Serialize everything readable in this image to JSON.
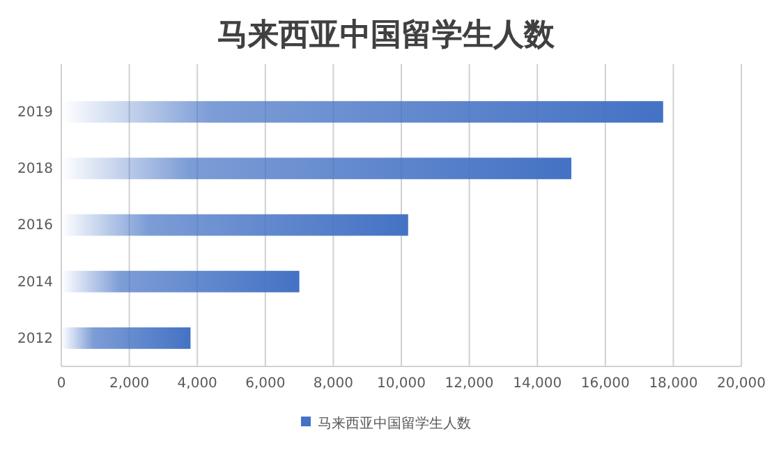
{
  "chart_data": {
    "type": "bar",
    "title": "马来西亚中国留学生人数",
    "orientation": "horizontal",
    "categories": [
      "2019",
      "2018",
      "2016",
      "2014",
      "2012"
    ],
    "series": [
      {
        "name": "马来西亚中国留学生人数",
        "color": "#4472c4",
        "values": [
          17700,
          15000,
          10200,
          7000,
          3800
        ]
      }
    ],
    "xlim": [
      0,
      20000
    ],
    "xticks": [
      {
        "value": 0,
        "label": "0"
      },
      {
        "value": 2000,
        "label": "2,000"
      },
      {
        "value": 4000,
        "label": "4,000"
      },
      {
        "value": 6000,
        "label": "6,000"
      },
      {
        "value": 8000,
        "label": "8,000"
      },
      {
        "value": 10000,
        "label": "10,000"
      },
      {
        "value": 12000,
        "label": "12,000"
      },
      {
        "value": 14000,
        "label": "14,000"
      },
      {
        "value": 16000,
        "label": "16,000"
      },
      {
        "value": 18000,
        "label": "18,000"
      },
      {
        "value": 20000,
        "label": "20,000"
      }
    ],
    "grid": "x",
    "legend": "bottom"
  }
}
